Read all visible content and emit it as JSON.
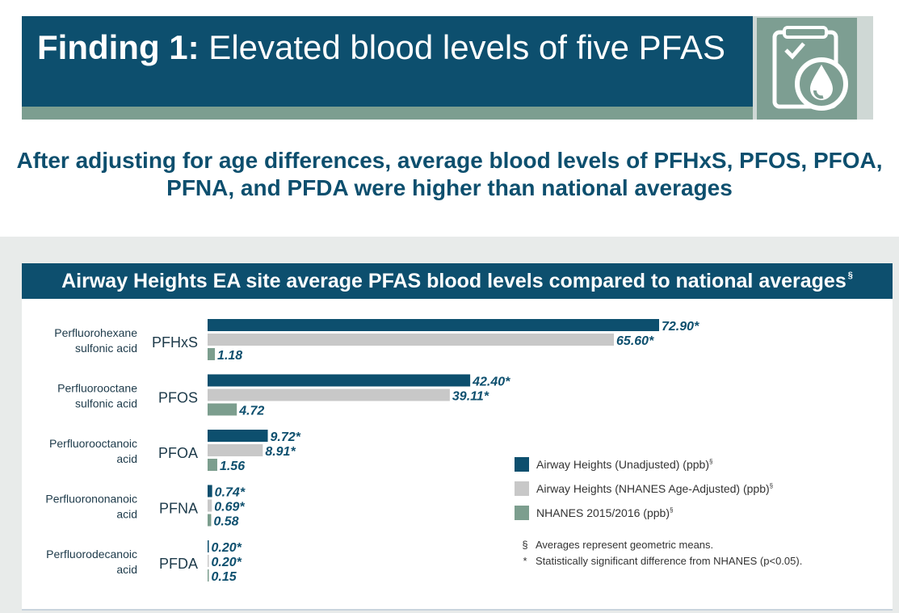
{
  "header": {
    "title_bold": "Finding 1:",
    "title_rest": " Elevated blood levels of five PFAS",
    "icon": "clipboard-checklist-drop-icon"
  },
  "subtitle": "After adjusting for age differences, average blood levels of PFHxS, PFOS, PFOA, PFNA, and PFDA were higher than national averages",
  "chart_data": {
    "type": "bar",
    "orientation": "horizontal",
    "title": "Airway Heights EA site average PFAS blood levels compared to national averages",
    "title_mark": "§",
    "categories": [
      {
        "name": "Perfluorohexane sulfonic acid",
        "name_lines": [
          "Perfluorohexane",
          "sulfonic acid"
        ],
        "abbr": "PFHxS"
      },
      {
        "name": "Perfluorooctane sulfonic acid",
        "name_lines": [
          "Perfluorooctane",
          "sulfonic acid"
        ],
        "abbr": "PFOS"
      },
      {
        "name": "Perfluorooctanoic acid",
        "name_lines": [
          "Perfluorooctanoic",
          "acid"
        ],
        "abbr": "PFOA"
      },
      {
        "name": "Perfluorononanoic acid",
        "name_lines": [
          "Perfluorononanoic",
          "acid"
        ],
        "abbr": "PFNA"
      },
      {
        "name": "Perfluorodecanoic acid",
        "name_lines": [
          "Perfluorodecanoic",
          "acid"
        ],
        "abbr": "PFDA"
      }
    ],
    "series": [
      {
        "name": "Airway Heights (Unadjusted) (ppb)",
        "mark": "§",
        "color": "#0d4f6e",
        "values": [
          72.9,
          42.4,
          9.72,
          0.74,
          0.2
        ],
        "labels": [
          "72.90*",
          "42.40*",
          "9.72*",
          "0.74*",
          "0.20*"
        ]
      },
      {
        "name": "Airway Heights (NHANES Age-Adjusted) (ppb)",
        "mark": "§",
        "color": "#c8c8c8",
        "values": [
          65.6,
          39.11,
          8.91,
          0.69,
          0.2
        ],
        "labels": [
          "65.60*",
          "39.11*",
          "8.91*",
          "0.69*",
          "0.20*"
        ]
      },
      {
        "name": "NHANES 2015/2016 (ppb)",
        "mark": "§",
        "color": "#7c9e8e",
        "values": [
          1.18,
          4.72,
          1.56,
          0.58,
          0.15
        ],
        "labels": [
          "1.18",
          "4.72",
          "1.56",
          "0.58",
          "0.15"
        ]
      }
    ],
    "xlim": [
      0,
      72.9
    ],
    "grid": false,
    "legend_position": "bottom-right",
    "notes": [
      {
        "symbol": "§",
        "text": "Averages represent geometric means."
      },
      {
        "symbol": "*",
        "text": "Statistically significant difference from NHANES (p<0.05)."
      }
    ]
  }
}
